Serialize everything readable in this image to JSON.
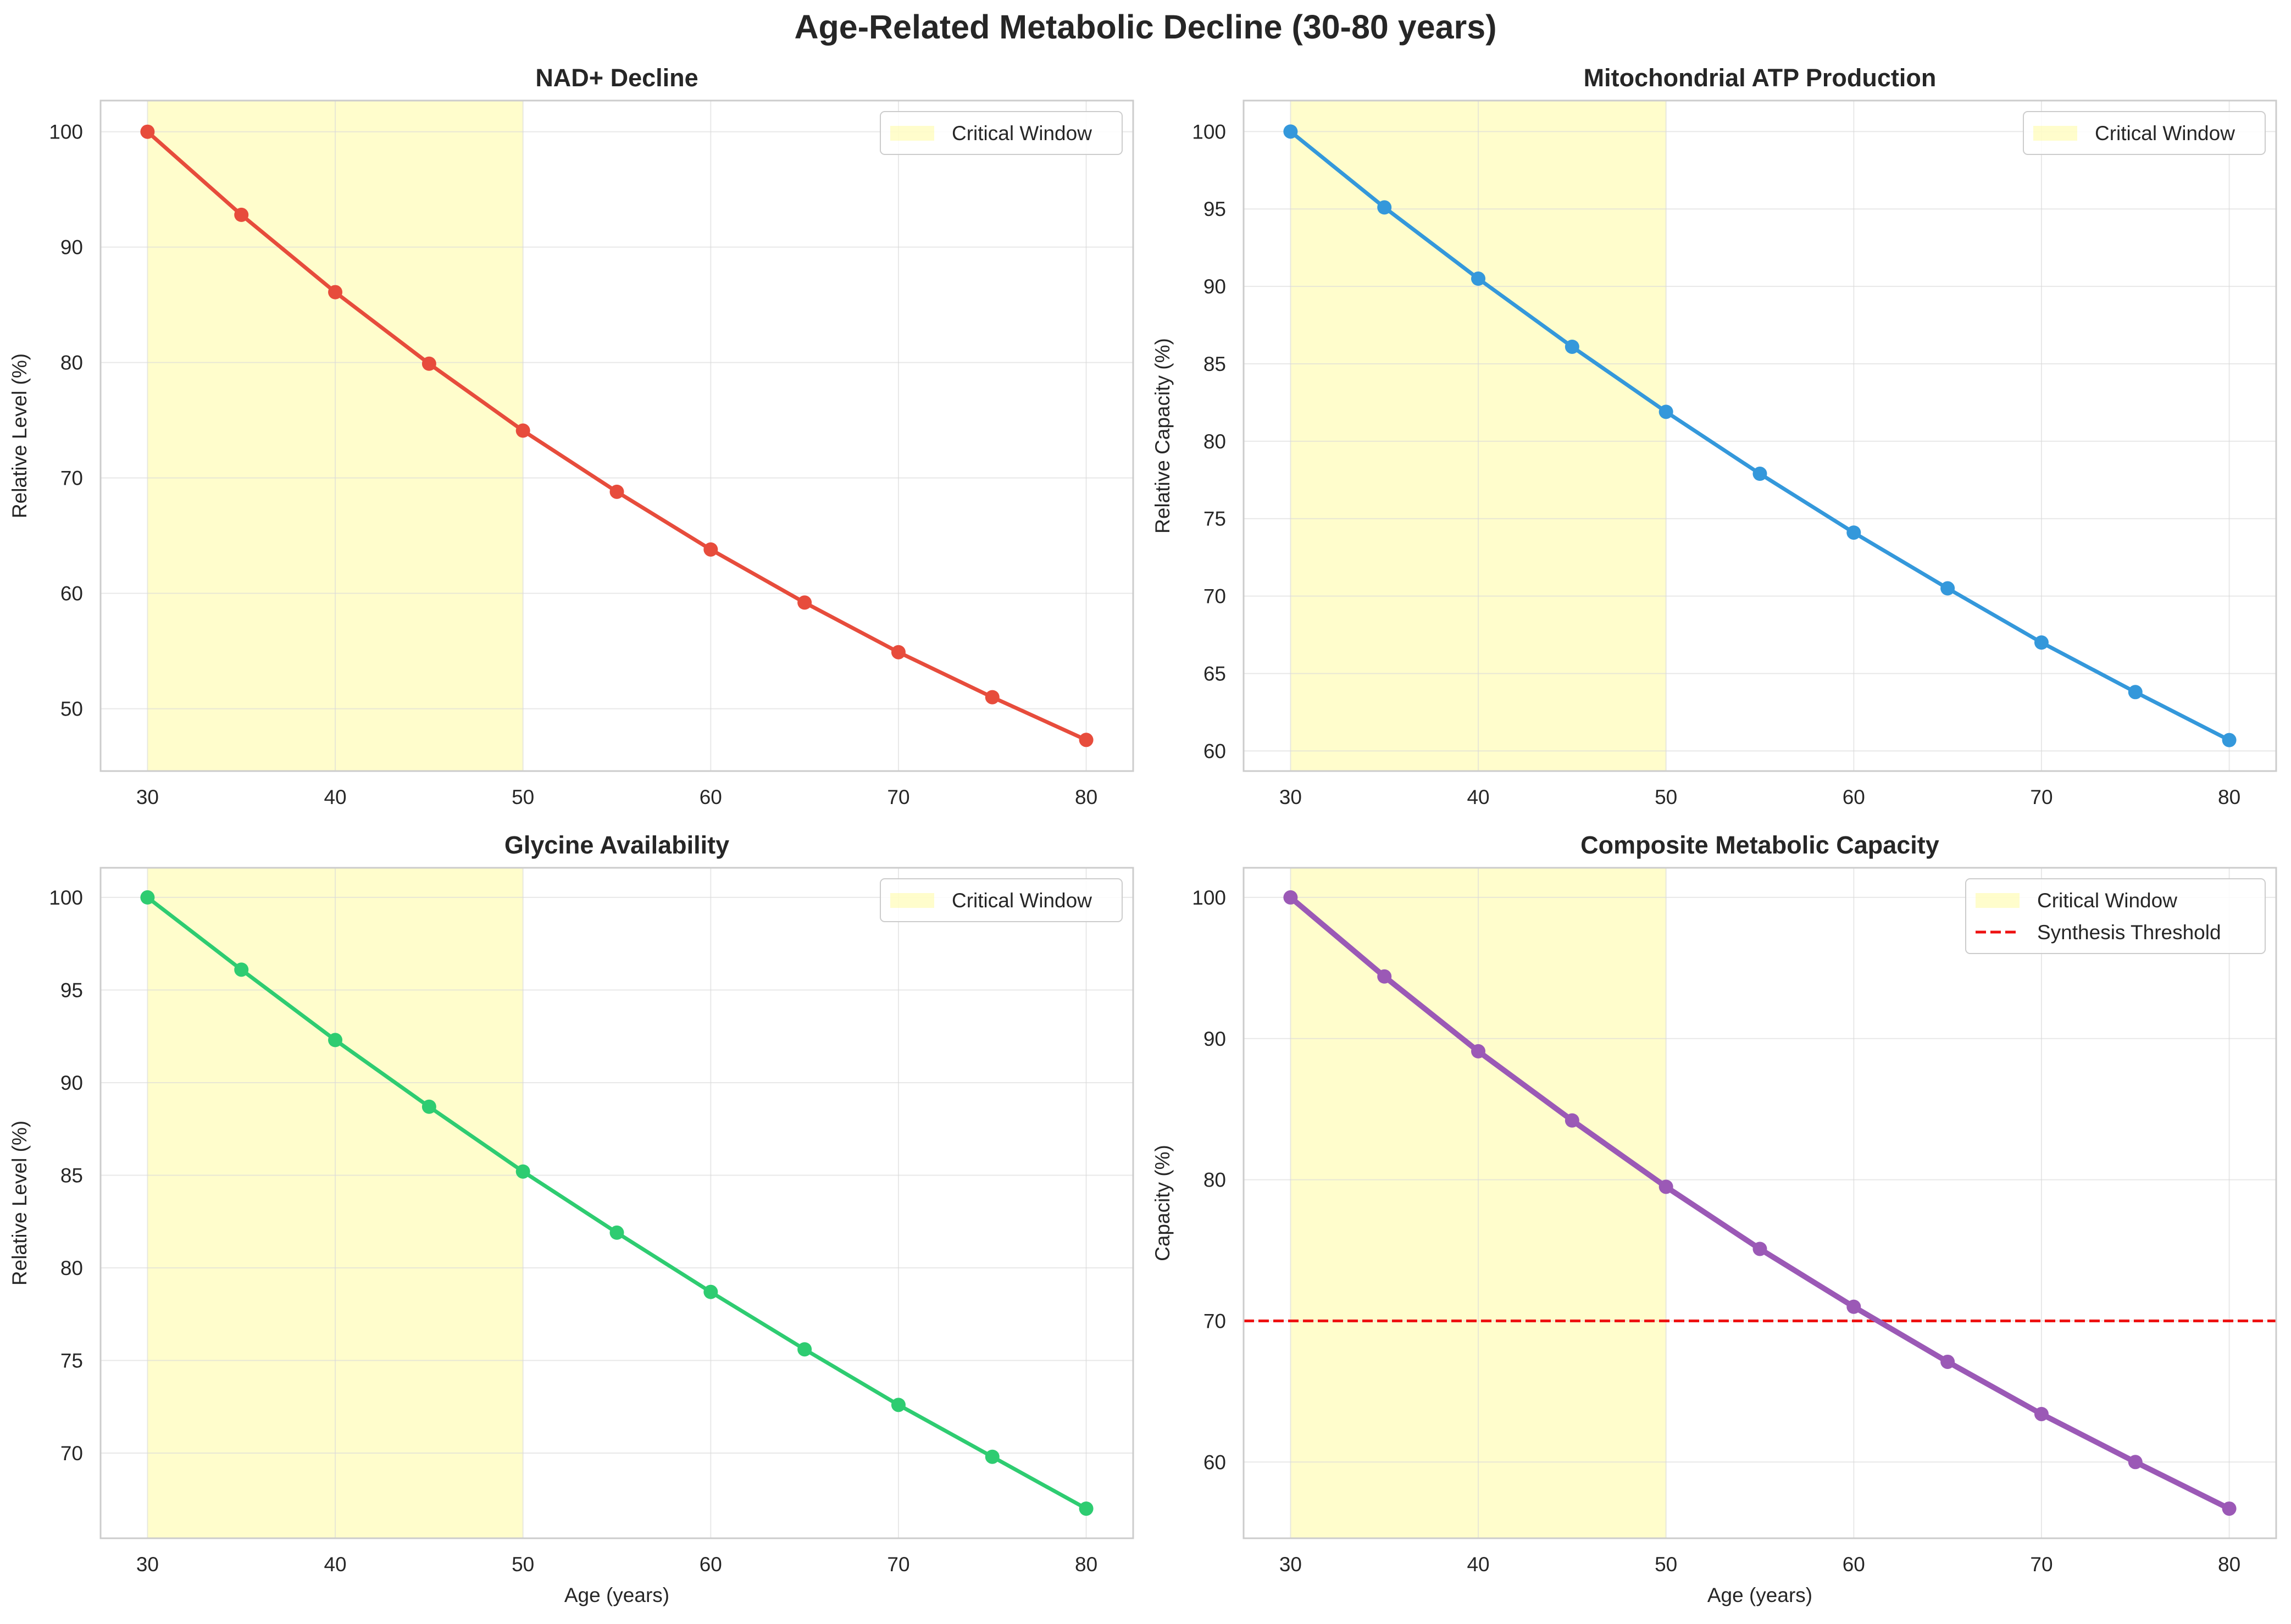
{
  "figure": {
    "title": "Age-Related Metabolic Decline (30-80 years)"
  },
  "chart_data": [
    {
      "type": "line",
      "title": "NAD+ Decline",
      "xlabel": "",
      "ylabel": "Relative Level (%)",
      "x": [
        30,
        35,
        40,
        45,
        50,
        55,
        60,
        65,
        70,
        75,
        80
      ],
      "series": [
        {
          "values": [
            100,
            92.8,
            86.1,
            79.9,
            74.1,
            68.8,
            63.8,
            59.2,
            54.9,
            51.0,
            47.3
          ],
          "color": "#e74c3c"
        }
      ],
      "xlim": [
        27.5,
        82.5
      ],
      "ylim": [
        44.6,
        102.7
      ],
      "xticks": [
        30,
        40,
        50,
        60,
        70,
        80
      ],
      "yticks": [
        50,
        60,
        70,
        80,
        90,
        100
      ],
      "span": {
        "label": "Critical Window",
        "from": 30,
        "to": 50,
        "color": "#fffb8f"
      },
      "hline": null,
      "legend": [
        "Critical Window"
      ],
      "legend_position": "top-right",
      "grid": true
    },
    {
      "type": "line",
      "title": "Mitochondrial ATP Production",
      "xlabel": "",
      "ylabel": "Relative Capacity (%)",
      "x": [
        30,
        35,
        40,
        45,
        50,
        55,
        60,
        65,
        70,
        75,
        80
      ],
      "series": [
        {
          "values": [
            100,
            95.1,
            90.5,
            86.1,
            81.9,
            77.9,
            74.1,
            70.5,
            67.0,
            63.8,
            60.7
          ],
          "color": "#3498db"
        }
      ],
      "xlim": [
        27.5,
        82.5
      ],
      "ylim": [
        58.7,
        102.0
      ],
      "xticks": [
        30,
        40,
        50,
        60,
        70,
        80
      ],
      "yticks": [
        60,
        65,
        70,
        75,
        80,
        85,
        90,
        95,
        100
      ],
      "span": {
        "label": "Critical Window",
        "from": 30,
        "to": 50,
        "color": "#fffb8f"
      },
      "hline": null,
      "legend": [
        "Critical Window"
      ],
      "legend_position": "top-right",
      "grid": true
    },
    {
      "type": "line",
      "title": "Glycine Availability",
      "xlabel": "Age (years)",
      "ylabel": "Relative Level (%)",
      "x": [
        30,
        35,
        40,
        45,
        50,
        55,
        60,
        65,
        70,
        75,
        80
      ],
      "series": [
        {
          "values": [
            100,
            96.1,
            92.3,
            88.7,
            85.2,
            81.9,
            78.7,
            75.6,
            72.6,
            69.8,
            67.0
          ],
          "color": "#2ecc71"
        }
      ],
      "xlim": [
        27.5,
        82.5
      ],
      "ylim": [
        65.4,
        101.6
      ],
      "xticks": [
        30,
        40,
        50,
        60,
        70,
        80
      ],
      "yticks": [
        70,
        75,
        80,
        85,
        90,
        95,
        100
      ],
      "span": {
        "label": "Critical Window",
        "from": 30,
        "to": 50,
        "color": "#fffb8f"
      },
      "hline": null,
      "legend": [
        "Critical Window"
      ],
      "legend_position": "top-right",
      "grid": true
    },
    {
      "type": "line",
      "title": "Composite Metabolic Capacity",
      "xlabel": "Age (years)",
      "ylabel": "Capacity (%)",
      "x": [
        30,
        35,
        40,
        45,
        50,
        55,
        60,
        65,
        70,
        75,
        80
      ],
      "series": [
        {
          "values": [
            100,
            94.4,
            89.1,
            84.2,
            79.5,
            75.1,
            71.0,
            67.1,
            63.4,
            60.0,
            56.7
          ],
          "color": "#9b59b6"
        }
      ],
      "xlim": [
        27.5,
        82.5
      ],
      "ylim": [
        54.6,
        102.1
      ],
      "xticks": [
        30,
        40,
        50,
        60,
        70,
        80
      ],
      "yticks": [
        60,
        70,
        80,
        90,
        100
      ],
      "span": {
        "label": "Critical Window",
        "from": 30,
        "to": 50,
        "color": "#fffb8f"
      },
      "hline": {
        "label": "Synthesis Threshold",
        "y": 70,
        "color": "#ee1111"
      },
      "legend": [
        "Critical Window",
        "Synthesis Threshold"
      ],
      "legend_position": "top-right",
      "grid": true
    }
  ]
}
